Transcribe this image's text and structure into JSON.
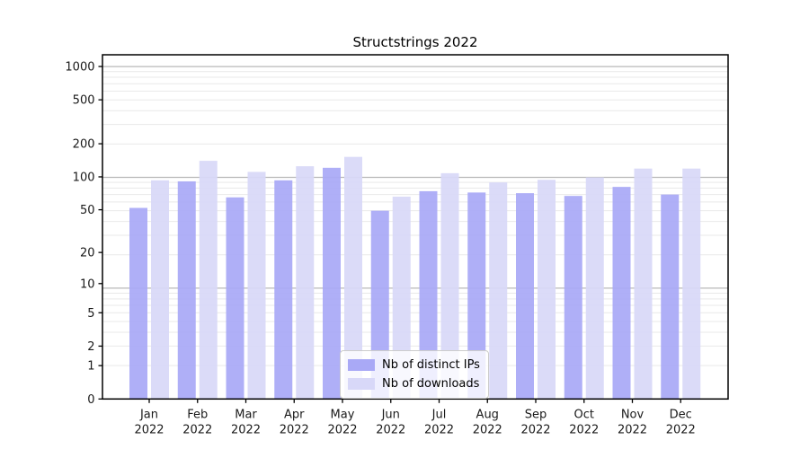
{
  "chart_data": {
    "type": "bar",
    "title": "Structstrings 2022",
    "categories": [
      "Jan 2022",
      "Feb 2022",
      "Mar 2022",
      "Apr 2022",
      "May 2022",
      "Jun 2022",
      "Jul 2022",
      "Aug 2022",
      "Sep 2022",
      "Oct 2022",
      "Nov 2022",
      "Dec 2022"
    ],
    "series": [
      {
        "name": "Nb of distinct IPs",
        "color": "#a9a9f6",
        "values": [
          52,
          91,
          65,
          93,
          121,
          49,
          74,
          72,
          71,
          67,
          81,
          69
        ]
      },
      {
        "name": "Nb of downloads",
        "color": "#d8d8f8",
        "values": [
          93,
          140,
          111,
          125,
          152,
          66,
          108,
          89,
          94,
          99,
          119,
          119
        ]
      }
    ],
    "yticks": [
      0,
      1,
      2,
      5,
      10,
      20,
      50,
      100,
      200,
      500,
      1000
    ],
    "yscale": "log1p",
    "ylim": [
      0,
      1276
    ],
    "xlabel": "",
    "ylabel": "",
    "grid": true,
    "legend_position": "lower center",
    "colors": {
      "spine": "#000000",
      "major_grid": "#b8b8b8",
      "minor_grid": "#e9e9e9",
      "text": "#1a1a1a"
    }
  }
}
